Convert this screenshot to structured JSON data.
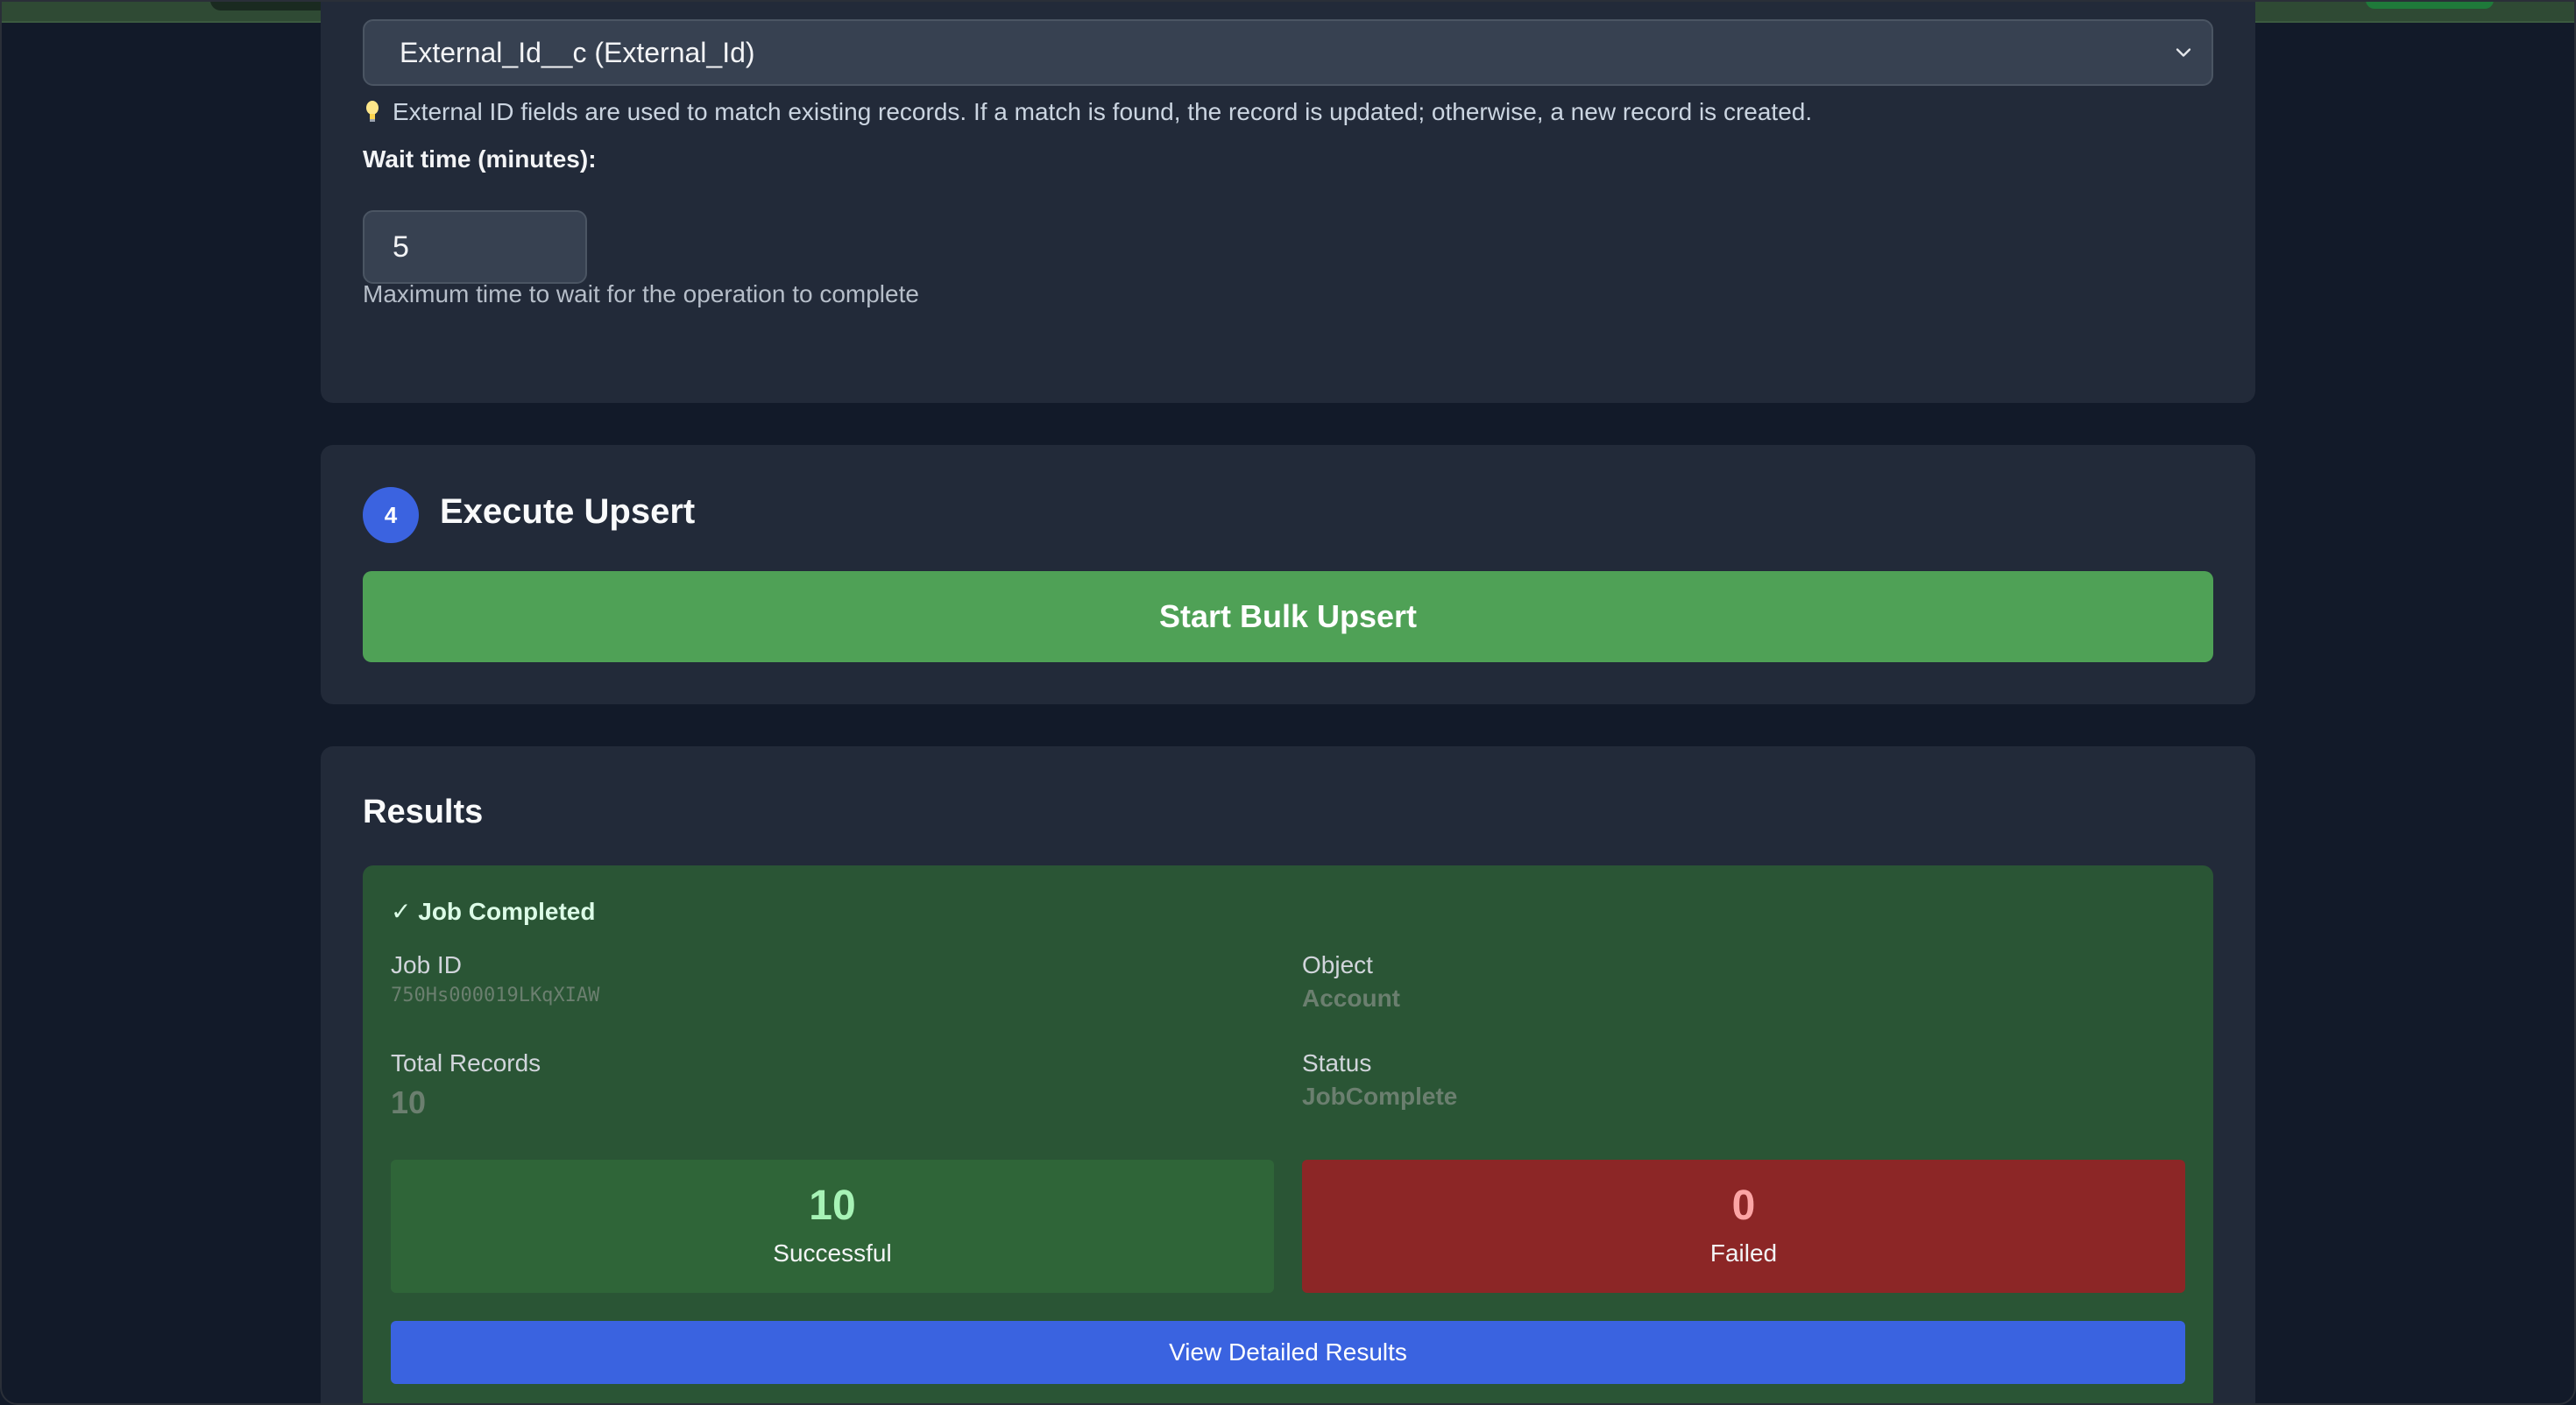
{
  "config": {
    "external_id_field": "External_Id__c (External_Id)",
    "external_id_hint": "External ID fields are used to match existing records. If a match is found, the record is updated; otherwise, a new record is created.",
    "wait_time_label": "Wait time (minutes):",
    "wait_time_value": "5",
    "wait_time_helper": "Maximum time to wait for the operation to complete"
  },
  "execute": {
    "step_number": "4",
    "title": "Execute Upsert",
    "button_label": "Start Bulk Upsert"
  },
  "results": {
    "title": "Results",
    "status_heading": "✓ Job Completed",
    "job_id_label": "Job ID",
    "job_id": "750Hs000019LKqXIAW",
    "object_label": "Object",
    "object": "Account",
    "total_records_label": "Total Records",
    "total_records": "10",
    "status_label": "Status",
    "status": "JobComplete",
    "successful_count": "10",
    "successful_label": "Successful",
    "failed_count": "0",
    "failed_label": "Failed",
    "details_button": "View Detailed Results"
  },
  "colors": {
    "accent_blue": "#3b63e0",
    "success_green": "#4fa156",
    "failed_red": "#8c2626",
    "panel": "#222a39",
    "background": "#121a29"
  },
  "icons": {
    "hint": "lightbulb-icon",
    "select": "chevron-down-icon"
  }
}
